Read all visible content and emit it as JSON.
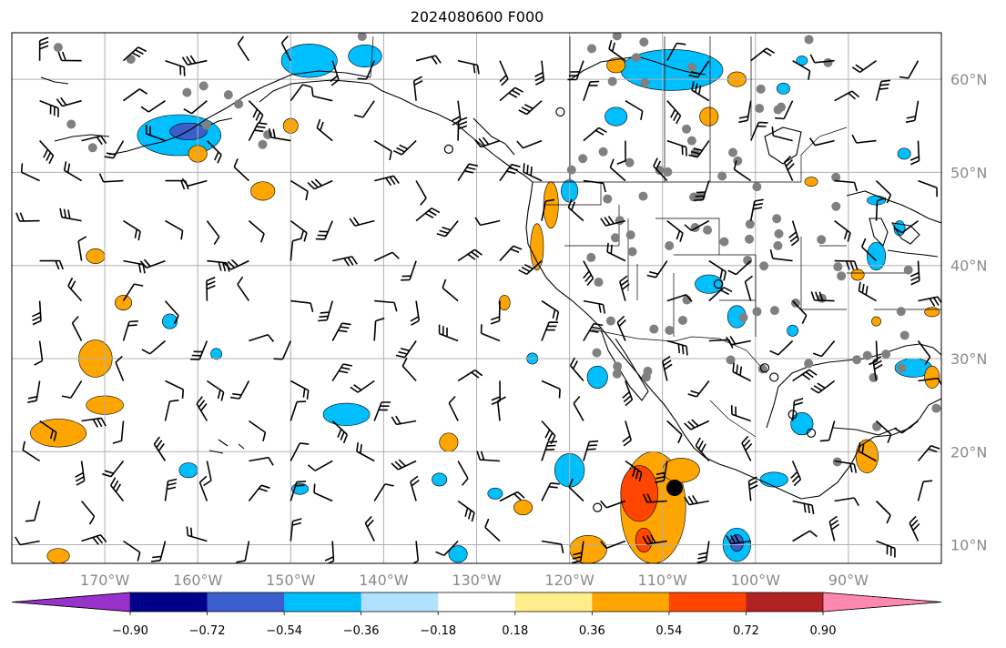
{
  "title": "2024080600 F000",
  "map": {
    "lon_range": [
      -180,
      -80
    ],
    "lat_range": [
      8,
      65
    ],
    "lon_ticks": [
      "170°W",
      "160°W",
      "150°W",
      "140°W",
      "130°W",
      "120°W",
      "110°W",
      "100°W",
      "90°W"
    ],
    "lon_tick_values": [
      -170,
      -160,
      -150,
      -140,
      -130,
      -120,
      -110,
      -100,
      -90
    ],
    "lat_ticks": [
      "60°N",
      "50°N",
      "40°N",
      "30°N",
      "20°N",
      "10°N"
    ],
    "lat_tick_values": [
      60,
      50,
      40,
      30,
      20,
      10
    ],
    "grid": true,
    "label_color": "#8a8a8a"
  },
  "colorbar": {
    "orientation": "horizontal",
    "extend": "both",
    "tick_labels": [
      "−0.90",
      "−0.72",
      "−0.54",
      "−0.36",
      "−0.18",
      "0.18",
      "0.36",
      "0.54",
      "0.72",
      "0.90"
    ],
    "colors": [
      "#9932cc",
      "#00008b",
      "#3a5fcd",
      "#00bfff",
      "#b0e2ff",
      "#ffffff",
      "#ffec8b",
      "#ffa500",
      "#ff4500",
      "#b22222",
      "#ff88b0"
    ]
  },
  "shading": [
    {
      "lon": -162,
      "lat": 54,
      "rx": 4.5,
      "ry": 2.2,
      "color": "#00bfff"
    },
    {
      "lon": -161,
      "lat": 54.4,
      "rx": 2,
      "ry": 0.9,
      "color": "#3a5fcd"
    },
    {
      "lon": -148,
      "lat": 62,
      "rx": 3,
      "ry": 1.8,
      "color": "#00bfff"
    },
    {
      "lon": -142,
      "lat": 62.5,
      "rx": 1.8,
      "ry": 1.2,
      "color": "#00bfff"
    },
    {
      "lon": -109,
      "lat": 61,
      "rx": 5.5,
      "ry": 2.2,
      "color": "#00bfff"
    },
    {
      "lon": -115,
      "lat": 56,
      "rx": 1.2,
      "ry": 1,
      "color": "#00bfff"
    },
    {
      "lon": -120,
      "lat": 48,
      "rx": 0.9,
      "ry": 1.2,
      "color": "#00bfff"
    },
    {
      "lon": -122,
      "lat": 46.5,
      "rx": 0.8,
      "ry": 2.5,
      "color": "#ffa500"
    },
    {
      "lon": -123.5,
      "lat": 42,
      "rx": 0.7,
      "ry": 2.5,
      "color": "#ffa500"
    },
    {
      "lon": -153,
      "lat": 48,
      "rx": 1.3,
      "ry": 1,
      "color": "#ffa500"
    },
    {
      "lon": -171,
      "lat": 41,
      "rx": 1,
      "ry": 0.8,
      "color": "#ffa500"
    },
    {
      "lon": -168,
      "lat": 36,
      "rx": 0.9,
      "ry": 0.8,
      "color": "#ffa500"
    },
    {
      "lon": -160,
      "lat": 52,
      "rx": 1,
      "ry": 0.9,
      "color": "#ffa500"
    },
    {
      "lon": -150,
      "lat": 55,
      "rx": 0.8,
      "ry": 0.8,
      "color": "#ffa500"
    },
    {
      "lon": -171,
      "lat": 30,
      "rx": 1.8,
      "ry": 2,
      "color": "#ffa500"
    },
    {
      "lon": -175,
      "lat": 22,
      "rx": 3,
      "ry": 1.5,
      "color": "#ffa500"
    },
    {
      "lon": -170,
      "lat": 25,
      "rx": 2,
      "ry": 1,
      "color": "#ffa500"
    },
    {
      "lon": -163,
      "lat": 34,
      "rx": 0.8,
      "ry": 0.8,
      "color": "#00bfff"
    },
    {
      "lon": -158,
      "lat": 30.5,
      "rx": 0.6,
      "ry": 0.6,
      "color": "#00bfff"
    },
    {
      "lon": -175,
      "lat": 8.8,
      "rx": 1.2,
      "ry": 0.8,
      "color": "#ffa500"
    },
    {
      "lon": -144,
      "lat": 24,
      "rx": 2.5,
      "ry": 1.2,
      "color": "#00bfff"
    },
    {
      "lon": -161,
      "lat": 18,
      "rx": 1,
      "ry": 0.8,
      "color": "#00bfff"
    },
    {
      "lon": -133,
      "lat": 21,
      "rx": 1,
      "ry": 1,
      "color": "#ffa500"
    },
    {
      "lon": -134,
      "lat": 17,
      "rx": 0.8,
      "ry": 0.7,
      "color": "#00bfff"
    },
    {
      "lon": -127,
      "lat": 36,
      "rx": 0.6,
      "ry": 0.8,
      "color": "#ffa500"
    },
    {
      "lon": -124,
      "lat": 30,
      "rx": 0.6,
      "ry": 0.6,
      "color": "#00bfff"
    },
    {
      "lon": -117,
      "lat": 28,
      "rx": 1.1,
      "ry": 1.2,
      "color": "#00bfff"
    },
    {
      "lon": -120,
      "lat": 18,
      "rx": 1.6,
      "ry": 1.8,
      "color": "#00bfff"
    },
    {
      "lon": -111,
      "lat": 14,
      "rx": 3.5,
      "ry": 6,
      "color": "#ffa500"
    },
    {
      "lon": -112.5,
      "lat": 15.5,
      "rx": 2,
      "ry": 3,
      "color": "#ff4500"
    },
    {
      "lon": -112,
      "lat": 10.5,
      "rx": 0.9,
      "ry": 1.3,
      "color": "#ff4500"
    },
    {
      "lon": -108,
      "lat": 18,
      "rx": 2,
      "ry": 1.3,
      "color": "#ffa500"
    },
    {
      "lon": -118,
      "lat": 9.5,
      "rx": 2,
      "ry": 1.5,
      "color": "#ffa500"
    },
    {
      "lon": -102,
      "lat": 10,
      "rx": 1.5,
      "ry": 1.8,
      "color": "#00bfff"
    },
    {
      "lon": -102,
      "lat": 10.2,
      "rx": 0.7,
      "ry": 0.9,
      "color": "#3a5fcd"
    },
    {
      "lon": -98,
      "lat": 17,
      "rx": 1.5,
      "ry": 0.8,
      "color": "#00bfff"
    },
    {
      "lon": -95,
      "lat": 23,
      "rx": 1.2,
      "ry": 1.2,
      "color": "#00bfff"
    },
    {
      "lon": -105,
      "lat": 38,
      "rx": 1.5,
      "ry": 1,
      "color": "#00bfff"
    },
    {
      "lon": -102,
      "lat": 34.5,
      "rx": 1,
      "ry": 1.2,
      "color": "#00bfff"
    },
    {
      "lon": -96,
      "lat": 33,
      "rx": 0.6,
      "ry": 0.6,
      "color": "#00bfff"
    },
    {
      "lon": -89,
      "lat": 39,
      "rx": 0.7,
      "ry": 0.6,
      "color": "#ffa500"
    },
    {
      "lon": -81,
      "lat": 35,
      "rx": 0.8,
      "ry": 0.5,
      "color": "#ffa500"
    },
    {
      "lon": -83,
      "lat": 29,
      "rx": 2,
      "ry": 1,
      "color": "#00bfff"
    },
    {
      "lon": -81,
      "lat": 28,
      "rx": 0.8,
      "ry": 1.2,
      "color": "#ffa500"
    },
    {
      "lon": -88,
      "lat": 19.5,
      "rx": 1.2,
      "ry": 1.8,
      "color": "#ffa500"
    },
    {
      "lon": -87,
      "lat": 41,
      "rx": 1,
      "ry": 1.5,
      "color": "#00bfff"
    },
    {
      "lon": -84.5,
      "lat": 44,
      "rx": 0.6,
      "ry": 0.8,
      "color": "#00bfff"
    },
    {
      "lon": -87,
      "lat": 47,
      "rx": 1,
      "ry": 0.5,
      "color": "#00bfff"
    },
    {
      "lon": -105,
      "lat": 56,
      "rx": 1,
      "ry": 1,
      "color": "#ffa500"
    },
    {
      "lon": -115,
      "lat": 61.5,
      "rx": 1,
      "ry": 0.8,
      "color": "#ffa500"
    },
    {
      "lon": -102,
      "lat": 60,
      "rx": 1,
      "ry": 0.8,
      "color": "#ffa500"
    },
    {
      "lon": -95,
      "lat": 62,
      "rx": 0.6,
      "ry": 0.5,
      "color": "#00bfff"
    },
    {
      "lon": -97,
      "lat": 59,
      "rx": 0.7,
      "ry": 0.6,
      "color": "#00bfff"
    },
    {
      "lon": -84,
      "lat": 52,
      "rx": 0.7,
      "ry": 0.6,
      "color": "#00bfff"
    },
    {
      "lon": -125,
      "lat": 14,
      "rx": 1,
      "ry": 0.8,
      "color": "#ffa500"
    },
    {
      "lon": -128,
      "lat": 15.5,
      "rx": 0.8,
      "ry": 0.6,
      "color": "#00bfff"
    },
    {
      "lon": -149,
      "lat": 16,
      "rx": 0.9,
      "ry": 0.6,
      "color": "#00bfff"
    },
    {
      "lon": -132,
      "lat": 9,
      "rx": 1,
      "ry": 0.9,
      "color": "#00bfff"
    },
    {
      "lon": -87,
      "lat": 34,
      "rx": 0.5,
      "ry": 0.5,
      "color": "#ffa500"
    },
    {
      "lon": -94,
      "lat": 49,
      "rx": 0.7,
      "ry": 0.5,
      "color": "#ffa500"
    }
  ]
}
